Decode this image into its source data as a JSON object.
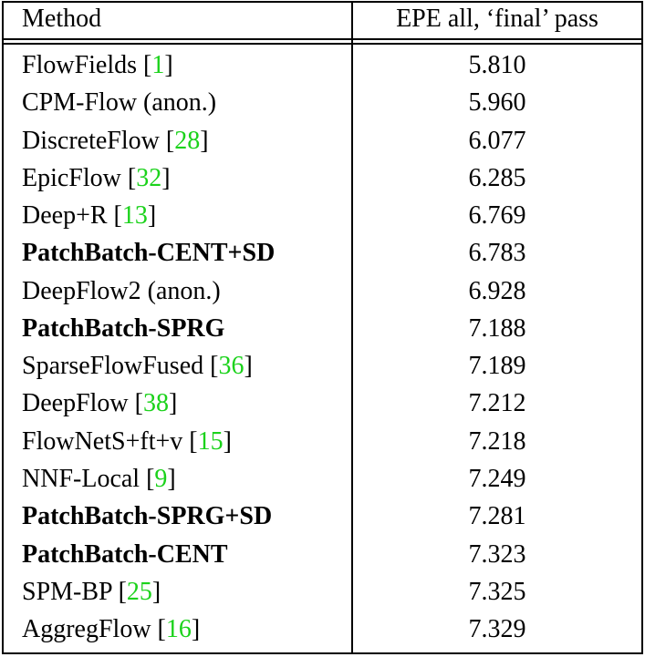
{
  "table": {
    "header": [
      "Method",
      "EPE all, ‘final’ pass"
    ],
    "ref_brackets": [
      "[",
      "]"
    ],
    "rows": [
      {
        "method": "FlowFields",
        "ref": "1",
        "epe": "5.810",
        "bold": false
      },
      {
        "method": "CPM-Flow (anon.)",
        "epe": "5.960",
        "bold": false
      },
      {
        "method": "DiscreteFlow",
        "ref": "28",
        "epe": "6.077",
        "bold": false
      },
      {
        "method": "EpicFlow",
        "ref": "32",
        "epe": "6.285",
        "bold": false
      },
      {
        "method": "Deep+R",
        "ref": "13",
        "epe": "6.769",
        "bold": false
      },
      {
        "method": "PatchBatch-CENT+SD",
        "epe": "6.783",
        "bold": true
      },
      {
        "method": "DeepFlow2 (anon.)",
        "epe": "6.928",
        "bold": false
      },
      {
        "method": "PatchBatch-SPRG",
        "epe": "7.188",
        "bold": true
      },
      {
        "method": "SparseFlowFused",
        "ref": "36",
        "epe": "7.189",
        "bold": false
      },
      {
        "method": "DeepFlow",
        "ref": "38",
        "epe": "7.212",
        "bold": false
      },
      {
        "method": "FlowNetS+ft+v",
        "ref": "15",
        "epe": "7.218",
        "bold": false
      },
      {
        "method": "NNF-Local",
        "ref": "9",
        "epe": "7.249",
        "bold": false
      },
      {
        "method": "PatchBatch-SPRG+SD",
        "epe": "7.281",
        "bold": true
      },
      {
        "method": "PatchBatch-CENT",
        "epe": "7.323",
        "bold": true
      },
      {
        "method": "SPM-BP",
        "ref": "25",
        "epe": "7.325",
        "bold": false
      },
      {
        "method": "AggregFlow",
        "ref": "16",
        "epe": "7.329",
        "bold": false
      }
    ]
  }
}
